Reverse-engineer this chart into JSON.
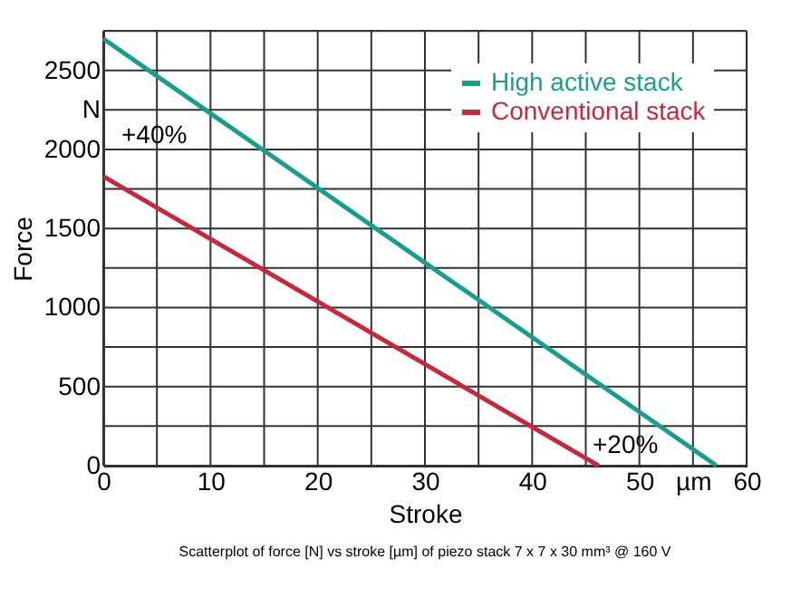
{
  "chart_data": {
    "type": "line",
    "xlabel": "Stroke",
    "ylabel": "Force",
    "xlim": [
      0,
      60
    ],
    "ylim": [
      0,
      2750
    ],
    "xticks": [
      0,
      {
        "value": 5,
        "label": null
      },
      10,
      {
        "value": 15,
        "label": null
      },
      20,
      {
        "value": 25,
        "label": null
      },
      30,
      {
        "value": 35,
        "label": null
      },
      40,
      {
        "value": 45,
        "label": null
      },
      50,
      {
        "value": 55,
        "label": "µm"
      },
      60
    ],
    "yticks": [
      0,
      {
        "value": 250,
        "label": null
      },
      500,
      {
        "value": 750,
        "label": null
      },
      1000,
      {
        "value": 1250,
        "label": null
      },
      1500,
      {
        "value": 1750,
        "label": null
      },
      2000,
      {
        "value": 2250,
        "label": "N"
      },
      2500,
      {
        "value": 2750,
        "label": null
      }
    ],
    "series": [
      {
        "name": "High active stack",
        "color": "#1a9e8c",
        "x": [
          0,
          57.2
        ],
        "values": [
          2700,
          0
        ]
      },
      {
        "name": "Conventional stack",
        "color": "#c8283c",
        "x": [
          0,
          46.2
        ],
        "values": [
          1830,
          0
        ]
      }
    ],
    "grid": true,
    "legend": "top right",
    "marker": "none",
    "line_style": "solid",
    "annotations": [
      "+40%",
      "+20%",
      "Scatterplot of force [N] vs stroke [µm] of piezo stack 7 x 7 x 30 mm³ @ 160 V"
    ]
  }
}
